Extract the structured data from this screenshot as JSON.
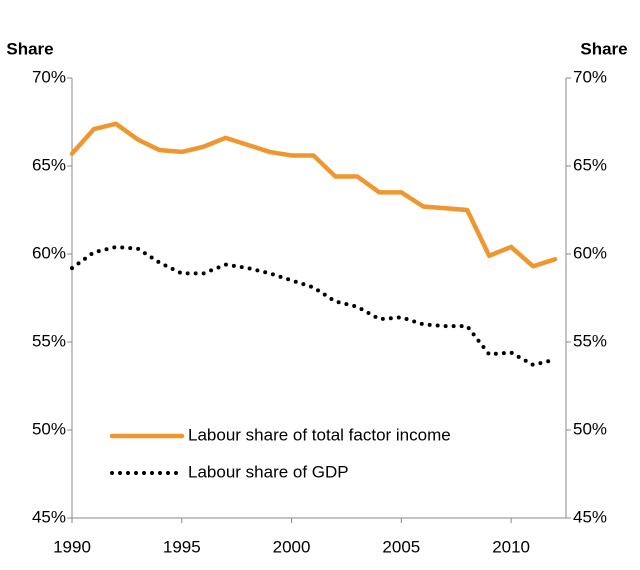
{
  "chart_data": {
    "type": "line",
    "y_label": "Share",
    "y2_label": "Share",
    "x": [
      1990,
      1991,
      1992,
      1993,
      1994,
      1995,
      1996,
      1997,
      1998,
      1999,
      2000,
      2001,
      2002,
      2003,
      2004,
      2005,
      2006,
      2007,
      2008,
      2009,
      2010,
      2011,
      2012
    ],
    "xlim": [
      1990,
      2012.5
    ],
    "xticks": [
      1990,
      1995,
      2000,
      2005,
      2010
    ],
    "ylim": [
      45,
      70
    ],
    "yticks": [
      {
        "value": 45,
        "label": "45%"
      },
      {
        "value": 50,
        "label": "50%"
      },
      {
        "value": 55,
        "label": "55%"
      },
      {
        "value": 60,
        "label": "60%"
      },
      {
        "value": 65,
        "label": "65%"
      },
      {
        "value": 70,
        "label": "70%"
      }
    ],
    "y2lim": [
      45,
      70
    ],
    "y2ticks": [
      {
        "value": 45,
        "label": "45%"
      },
      {
        "value": 50,
        "label": "50%"
      },
      {
        "value": 55,
        "label": "55%"
      },
      {
        "value": 60,
        "label": "60%"
      },
      {
        "value": 65,
        "label": "65%"
      },
      {
        "value": 70,
        "label": "70%"
      }
    ],
    "series": [
      {
        "name": "Labour share of total factor income",
        "color": "#f0962f",
        "style": "solid",
        "values": [
          65.7,
          67.1,
          67.4,
          66.5,
          65.9,
          65.8,
          66.1,
          66.6,
          66.2,
          65.8,
          65.6,
          65.6,
          64.4,
          64.4,
          63.5,
          63.5,
          62.7,
          62.6,
          62.5,
          59.9,
          60.4,
          59.3,
          59.7
        ]
      },
      {
        "name": "Labour share of GDP",
        "color": "#000000",
        "style": "dotted",
        "values": [
          59.2,
          60.1,
          60.4,
          60.3,
          59.5,
          58.9,
          58.9,
          59.4,
          59.2,
          58.9,
          58.5,
          58.1,
          57.3,
          57.0,
          56.3,
          56.4,
          56.0,
          55.9,
          55.9,
          54.3,
          54.4,
          53.7,
          54.0
        ]
      }
    ]
  }
}
